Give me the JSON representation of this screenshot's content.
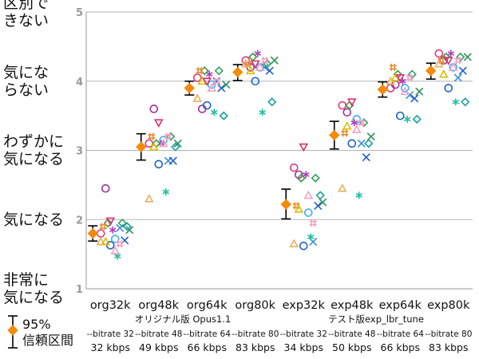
{
  "chart_data": {
    "type": "scatter",
    "ylim": [
      1,
      5
    ],
    "yticks": [
      "1",
      "2",
      "3",
      "4",
      "5"
    ],
    "ylabels": [
      {
        "value": 5,
        "lines": [
          "区別で",
          "きない"
        ]
      },
      {
        "value": 4,
        "lines": [
          "気にな",
          "らない"
        ]
      },
      {
        "value": 3,
        "lines": [
          "わずかに",
          "気になる"
        ]
      },
      {
        "value": 2,
        "lines": [
          "気になる"
        ]
      },
      {
        "value": 1,
        "lines": [
          "非常に",
          "気になる"
        ]
      }
    ],
    "categories": [
      "org32k",
      "org48k",
      "org64k",
      "org80k",
      "exp32k",
      "exp48k",
      "exp64k",
      "exp80k"
    ],
    "bitrate_labels": [
      "--bitrate 32",
      "--bitrate 48",
      "--bitrate 64",
      "--bitrate 80",
      "--bitrate 32",
      "--bitrate 48",
      "--bitrate 64",
      "--bitrate 80"
    ],
    "kbps_labels": [
      "32 kbps",
      "49 kbps",
      "66 kbps",
      "83 kbps",
      "34 kbps",
      "50 kbps",
      "66 kbps",
      "83 kbps"
    ],
    "groups": [
      {
        "label": "オリジナル版 Opus1.1",
        "from": 0,
        "to": 3
      },
      {
        "label": "テスト版exp_lbr_tune",
        "from": 4,
        "to": 7
      }
    ],
    "means": [
      1.8,
      3.05,
      3.9,
      4.13,
      2.22,
      3.22,
      3.88,
      4.15
    ],
    "ci_low": [
      1.69,
      2.86,
      3.8,
      4.01,
      2.01,
      3.02,
      3.77,
      4.03
    ],
    "ci_high": [
      1.91,
      3.24,
      4.0,
      4.24,
      2.44,
      3.42,
      3.99,
      4.26
    ],
    "listeners": [
      {
        "color": "#e8387a",
        "marker": "circle"
      },
      {
        "color": "#a030a0",
        "marker": "circle"
      },
      {
        "color": "#1f5fd0",
        "marker": "circle"
      },
      {
        "color": "#3aaef0",
        "marker": "circle"
      },
      {
        "color": "#3a8fd8",
        "marker": "x"
      },
      {
        "color": "#1f5fd0",
        "marker": "x"
      },
      {
        "color": "#2f8f5a",
        "marker": "x"
      },
      {
        "color": "#20c0a0",
        "marker": "star"
      },
      {
        "color": "#b040c0",
        "marker": "star"
      },
      {
        "color": "#30a060",
        "marker": "diamond"
      },
      {
        "color": "#3b9b3b",
        "marker": "diamond"
      },
      {
        "color": "#1a9f9f",
        "marker": "diamond"
      },
      {
        "color": "#e88a30",
        "marker": "hash"
      },
      {
        "color": "#e8b060",
        "marker": "triangle"
      },
      {
        "color": "#d8c000",
        "marker": "triangle"
      },
      {
        "color": "#e0306f",
        "marker": "triangle_down"
      },
      {
        "color": "#f0a0c0",
        "marker": "triangle"
      },
      {
        "color": "#f0a0c0",
        "marker": "hash"
      }
    ],
    "scores": [
      [
        1.8,
        2.45,
        1.63,
        1.72,
        1.88,
        1.7,
        1.85,
        1.47,
        1.85,
        1.95,
        1.95,
        1.9,
        1.9,
        1.68,
        1.68,
        1.98,
        1.55,
        1.65
      ],
      [
        3.1,
        3.6,
        2.8,
        3.15,
        2.85,
        2.85,
        3.1,
        2.4,
        3.1,
        3.2,
        3.1,
        3.05,
        3.2,
        2.3,
        3.05,
        3.4,
        3.1,
        3.2
      ],
      [
        4.05,
        3.6,
        3.65,
        3.95,
        4.0,
        3.9,
        3.95,
        3.55,
        4.1,
        4.15,
        4.15,
        3.5,
        4.15,
        3.75,
        4.0,
        4.0,
        3.9,
        4.0
      ],
      [
        4.3,
        4.2,
        4.0,
        4.2,
        4.2,
        4.15,
        4.3,
        3.55,
        4.4,
        4.25,
        4.35,
        3.7,
        4.25,
        4.25,
        4.15,
        4.25,
        4.2,
        4.3
      ],
      [
        2.75,
        2.65,
        1.62,
        2.1,
        1.68,
        2.2,
        2.25,
        1.75,
        2.65,
        2.6,
        2.6,
        2.35,
        2.2,
        1.65,
        2.15,
        3.05,
        2.35,
        1.95
      ],
      [
        3.65,
        3.55,
        3.1,
        3.45,
        3.1,
        2.9,
        3.2,
        2.35,
        3.4,
        3.4,
        3.65,
        3.1,
        3.25,
        2.45,
        3.35,
        3.7,
        3.3,
        3.4
      ],
      [
        3.9,
        3.95,
        3.5,
        3.9,
        3.8,
        3.75,
        3.85,
        3.45,
        4.0,
        4.1,
        4.1,
        3.45,
        4.2,
        4.0,
        4.05,
        4.05,
        3.85,
        4.05
      ],
      [
        4.4,
        4.3,
        3.9,
        4.2,
        4.05,
        4.15,
        4.35,
        3.7,
        4.4,
        4.35,
        4.35,
        3.7,
        4.3,
        4.25,
        4.1,
        4.3,
        4.2,
        4.3
      ]
    ],
    "legend_label": [
      "95%",
      "信頼区間"
    ],
    "grid": true
  }
}
